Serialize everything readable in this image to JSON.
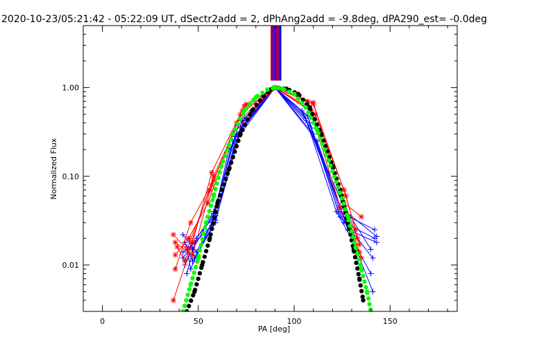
{
  "chart_data": {
    "type": "scatter",
    "title": "2020-10-23/05:21:42 - 05:22:09 UT, dSectr2add = 2, dPhAng2add = -9.8deg, dPA290_est= -0.0deg",
    "xlabel": "PA [deg]",
    "ylabel": "Normalized Flux",
    "xlim": [
      -10,
      185
    ],
    "ylim": [
      0.003,
      5
    ],
    "y_scale": "log",
    "x_ticks": [
      "0",
      "50",
      "100",
      "150"
    ],
    "y_ticks": [
      "0.01",
      "0.10",
      "1.00"
    ],
    "colors": {
      "red": "#ff0000",
      "blue": "#0000ff",
      "black": "#000000",
      "green": "#00ff00",
      "purple": "#8000c0"
    },
    "fit_black": {
      "x": [
        44,
        48,
        52,
        56,
        60,
        66,
        72,
        78,
        84,
        88,
        90,
        92,
        96,
        102,
        108,
        114,
        120,
        124,
        128,
        131,
        134,
        136
      ],
      "y": [
        0.003,
        0.005,
        0.01,
        0.02,
        0.05,
        0.12,
        0.3,
        0.55,
        0.8,
        0.96,
        1.0,
        0.99,
        0.97,
        0.85,
        0.6,
        0.3,
        0.13,
        0.07,
        0.03,
        0.015,
        0.007,
        0.004
      ]
    },
    "fit_green": {
      "x": [
        42,
        46,
        50,
        54,
        58,
        62,
        68,
        74,
        80,
        86,
        90,
        94,
        100,
        106,
        112,
        118,
        124,
        128,
        132,
        135,
        138,
        140
      ],
      "y": [
        0.003,
        0.006,
        0.012,
        0.03,
        0.06,
        0.13,
        0.3,
        0.55,
        0.78,
        0.95,
        1.0,
        0.97,
        0.85,
        0.6,
        0.33,
        0.15,
        0.065,
        0.035,
        0.016,
        0.009,
        0.005,
        0.003
      ]
    },
    "red_traces": [
      {
        "x": [
          37,
          47,
          57,
          74,
          90,
          110,
          126,
          135
        ],
        "y": [
          0.004,
          0.018,
          0.11,
          0.62,
          1.0,
          0.68,
          0.05,
          0.035
        ]
      },
      {
        "x": [
          38,
          46,
          58,
          72,
          90,
          108,
          124,
          134
        ],
        "y": [
          0.009,
          0.03,
          0.09,
          0.5,
          1.0,
          0.6,
          0.045,
          0.014
        ]
      },
      {
        "x": [
          37,
          44,
          56,
          70,
          90,
          109,
          125,
          133
        ],
        "y": [
          0.022,
          0.015,
          0.07,
          0.4,
          1.0,
          0.55,
          0.06,
          0.02
        ]
      },
      {
        "x": [
          38,
          45,
          55,
          68,
          90,
          111,
          126,
          132
        ],
        "y": [
          0.013,
          0.02,
          0.05,
          0.3,
          1.0,
          0.5,
          0.07,
          0.025
        ]
      },
      {
        "x": [
          39,
          43,
          58,
          75,
          90,
          107,
          123,
          135
        ],
        "y": [
          0.016,
          0.011,
          0.1,
          0.65,
          1.0,
          0.7,
          0.08,
          0.012
        ]
      },
      {
        "x": [
          38,
          47,
          57,
          73,
          90,
          110,
          127,
          134
        ],
        "y": [
          0.018,
          0.013,
          0.08,
          0.55,
          1.0,
          0.65,
          0.06,
          0.017
        ]
      }
    ],
    "blue_traces": [
      {
        "x": [
          42,
          48,
          58,
          72,
          90,
          106,
          122,
          140
        ],
        "y": [
          0.012,
          0.018,
          0.04,
          0.35,
          1.0,
          0.45,
          0.04,
          0.008
        ]
      },
      {
        "x": [
          43,
          47,
          59,
          70,
          90,
          108,
          124,
          141
        ],
        "y": [
          0.018,
          0.011,
          0.03,
          0.3,
          1.0,
          0.4,
          0.035,
          0.012
        ]
      },
      {
        "x": [
          44,
          49,
          58,
          68,
          90,
          110,
          126,
          142
        ],
        "y": [
          0.008,
          0.02,
          0.035,
          0.25,
          1.0,
          0.3,
          0.03,
          0.02
        ]
      },
      {
        "x": [
          42,
          46,
          57,
          66,
          90,
          112,
          128,
          143
        ],
        "y": [
          0.014,
          0.016,
          0.028,
          0.2,
          1.0,
          0.25,
          0.025,
          0.018
        ]
      },
      {
        "x": [
          45,
          48,
          59,
          74,
          90,
          104,
          125,
          140
        ],
        "y": [
          0.02,
          0.012,
          0.032,
          0.45,
          1.0,
          0.55,
          0.05,
          0.015
        ]
      },
      {
        "x": [
          43,
          47,
          58,
          71,
          90,
          107,
          123,
          142
        ],
        "y": [
          0.01,
          0.015,
          0.038,
          0.38,
          1.0,
          0.48,
          0.04,
          0.025
        ]
      },
      {
        "x": [
          44,
          46,
          57,
          69,
          90,
          109,
          127,
          141
        ],
        "y": [
          0.016,
          0.009,
          0.03,
          0.28,
          1.0,
          0.35,
          0.03,
          0.005
        ]
      },
      {
        "x": [
          42,
          49,
          59,
          73,
          90,
          105,
          124,
          143
        ],
        "y": [
          0.022,
          0.014,
          0.036,
          0.42,
          1.0,
          0.5,
          0.045,
          0.021
        ]
      }
    ],
    "vlines": [
      {
        "x": 88,
        "color": "red"
      },
      {
        "x": 88.5,
        "color": "blue"
      },
      {
        "x": 89,
        "color": "red"
      },
      {
        "x": 89.5,
        "color": "blue"
      },
      {
        "x": 90,
        "color": "purple"
      },
      {
        "x": 90.5,
        "color": "blue"
      },
      {
        "x": 91,
        "color": "red"
      },
      {
        "x": 91.5,
        "color": "blue"
      },
      {
        "x": 92,
        "color": "red"
      },
      {
        "x": 92.5,
        "color": "blue"
      },
      {
        "x": 93,
        "color": "blue"
      }
    ],
    "vline_y_range": [
      1.2,
      5
    ]
  }
}
